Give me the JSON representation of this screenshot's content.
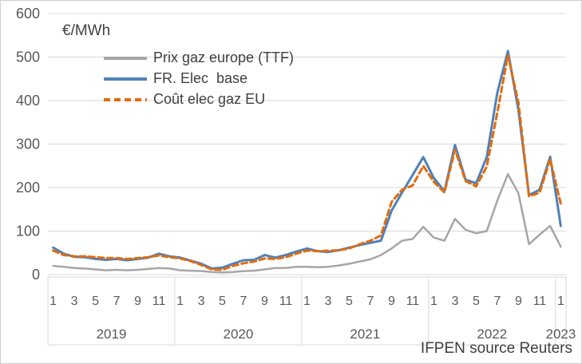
{
  "chart_data": {
    "type": "line",
    "unit_label": "€/MWh",
    "source_note": "IFPEN source Reuters",
    "x_frequency": "monthly",
    "x_start": "2019-01",
    "x_end": "2023-01",
    "ylim": [
      0,
      600
    ],
    "ytick_step": 100,
    "grid": "horizontal",
    "legend_position": "top-left-inside",
    "month_ticks": [
      1,
      3,
      5,
      7,
      9,
      11
    ],
    "years": [
      {
        "label": "2019",
        "months": 12
      },
      {
        "label": "2020",
        "months": 12
      },
      {
        "label": "2021",
        "months": 12
      },
      {
        "label": "2022",
        "months": 12
      },
      {
        "label": "2023",
        "months": 1
      }
    ],
    "series": [
      {
        "name": "Prix gaz europe (TTF)",
        "color": "#A6A6A6",
        "style": "solid",
        "width": 2.5,
        "values": [
          20,
          18,
          15,
          14,
          12,
          10,
          11,
          10,
          11,
          13,
          15,
          14,
          10,
          9,
          8,
          6,
          5,
          6,
          8,
          9,
          12,
          15,
          15,
          18,
          18,
          17,
          18,
          21,
          25,
          30,
          35,
          45,
          60,
          78,
          82,
          110,
          85,
          78,
          128,
          103,
          95,
          100,
          170,
          231,
          187,
          70,
          92,
          112,
          64
        ]
      },
      {
        "name": "FR. Elec  base",
        "color": "#4F81BD",
        "style": "solid",
        "width": 3,
        "values": [
          62,
          48,
          41,
          40,
          36,
          34,
          36,
          33,
          36,
          39,
          48,
          42,
          39,
          32,
          25,
          14,
          16,
          25,
          33,
          34,
          45,
          39,
          45,
          53,
          60,
          54,
          52,
          56,
          62,
          68,
          73,
          78,
          147,
          189,
          229,
          270,
          222,
          192,
          298,
          218,
          210,
          270,
          418,
          514,
          378,
          183,
          195,
          271,
          112
        ]
      },
      {
        "name": "Coût elec gaz EU",
        "color": "#E36C09",
        "style": "dashed",
        "width": 3,
        "dash": "7 4.5",
        "values": [
          55,
          45,
          42,
          42,
          40,
          38,
          38,
          36,
          38,
          40,
          44,
          40,
          37,
          31,
          22,
          12,
          11,
          20,
          26,
          30,
          37,
          36,
          40,
          48,
          55,
          54,
          55,
          56,
          60,
          70,
          78,
          90,
          167,
          195,
          205,
          250,
          213,
          189,
          287,
          215,
          203,
          248,
          372,
          504,
          395,
          180,
          188,
          265,
          163
        ]
      }
    ]
  }
}
